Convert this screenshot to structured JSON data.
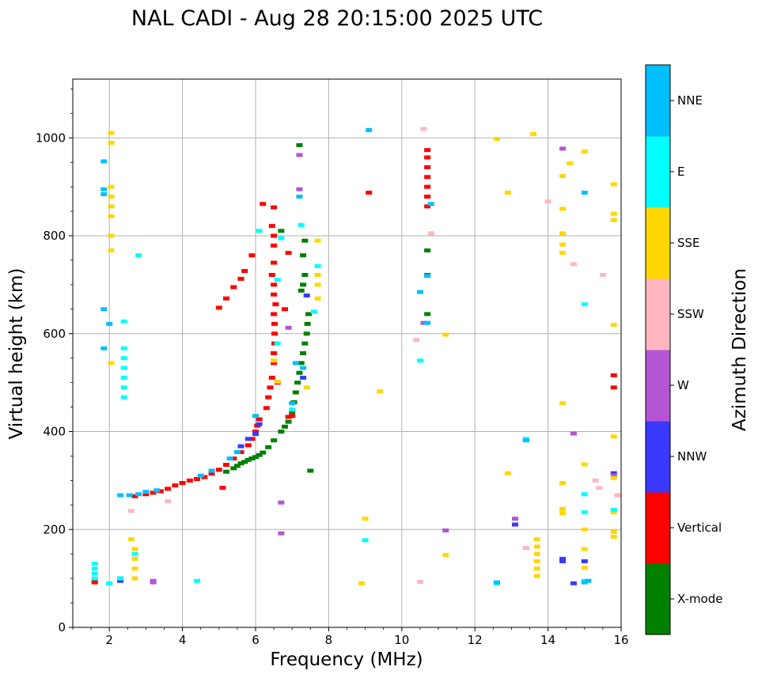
{
  "chart_data": {
    "type": "scatter",
    "title": "NAL CADI - Aug 28 20:15:00 2025 UTC",
    "xlabel": "Frequency (MHz)",
    "ylabel": "Virtual height (km)",
    "xlim": [
      1,
      16
    ],
    "ylim": [
      0,
      1120
    ],
    "xticks": [
      2,
      4,
      6,
      8,
      10,
      12,
      14,
      16
    ],
    "yticks": [
      0,
      200,
      400,
      600,
      800,
      1000
    ],
    "grid": true,
    "colorbar": {
      "label": "Azimuth Direction",
      "categories": [
        {
          "name": "X-mode",
          "color": "#008000"
        },
        {
          "name": "Vertical",
          "color": "#ff0000"
        },
        {
          "name": "NNW",
          "color": "#3a3aff"
        },
        {
          "name": "W",
          "color": "#b455d6"
        },
        {
          "name": "SSW",
          "color": "#ffb6c1"
        },
        {
          "name": "SSE",
          "color": "#ffd700"
        },
        {
          "name": "E",
          "color": "#00ffff"
        },
        {
          "name": "NNE",
          "color": "#00bfff"
        }
      ]
    },
    "series": [
      {
        "name": "X-mode",
        "points": [
          [
            5.2,
            318
          ],
          [
            5.4,
            325
          ],
          [
            5.5,
            330
          ],
          [
            5.6,
            335
          ],
          [
            5.7,
            338
          ],
          [
            5.8,
            342
          ],
          [
            5.9,
            345
          ],
          [
            6.0,
            348
          ],
          [
            6.1,
            352
          ],
          [
            6.2,
            357
          ],
          [
            6.35,
            368
          ],
          [
            6.5,
            382
          ],
          [
            6.7,
            400
          ],
          [
            6.8,
            410
          ],
          [
            6.9,
            420
          ],
          [
            7.0,
            440
          ],
          [
            7.05,
            460
          ],
          [
            7.1,
            480
          ],
          [
            7.15,
            500
          ],
          [
            7.2,
            520
          ],
          [
            7.25,
            540
          ],
          [
            7.3,
            560
          ],
          [
            7.35,
            580
          ],
          [
            7.4,
            600
          ],
          [
            7.42,
            620
          ],
          [
            7.45,
            640
          ],
          [
            7.25,
            688
          ],
          [
            7.3,
            700
          ],
          [
            7.35,
            720
          ],
          [
            7.3,
            760
          ],
          [
            7.35,
            790
          ],
          [
            6.7,
            810
          ],
          [
            7.2,
            985
          ],
          [
            7.5,
            320
          ],
          [
            10.7,
            770
          ],
          [
            10.7,
            720
          ],
          [
            10.7,
            640
          ],
          [
            1.6,
            95
          ]
        ]
      },
      {
        "name": "Vertical",
        "points": [
          [
            2.7,
            268
          ],
          [
            3.0,
            272
          ],
          [
            3.2,
            275
          ],
          [
            3.4,
            278
          ],
          [
            3.6,
            283
          ],
          [
            3.8,
            290
          ],
          [
            4.0,
            295
          ],
          [
            4.2,
            300
          ],
          [
            4.4,
            303
          ],
          [
            4.6,
            307
          ],
          [
            4.8,
            314
          ],
          [
            5.0,
            322
          ],
          [
            5.2,
            332
          ],
          [
            5.4,
            345
          ],
          [
            5.6,
            358
          ],
          [
            5.8,
            372
          ],
          [
            5.9,
            385
          ],
          [
            6.0,
            400
          ],
          [
            6.05,
            412
          ],
          [
            6.1,
            425
          ],
          [
            6.3,
            448
          ],
          [
            6.35,
            470
          ],
          [
            6.4,
            490
          ],
          [
            6.45,
            510
          ],
          [
            6.5,
            540
          ],
          [
            6.5,
            560
          ],
          [
            6.52,
            580
          ],
          [
            6.52,
            600
          ],
          [
            6.52,
            620
          ],
          [
            6.5,
            640
          ],
          [
            6.55,
            660
          ],
          [
            6.5,
            680
          ],
          [
            6.5,
            700
          ],
          [
            6.45,
            720
          ],
          [
            6.5,
            745
          ],
          [
            6.5,
            780
          ],
          [
            6.5,
            800
          ],
          [
            6.45,
            820
          ],
          [
            6.5,
            858
          ],
          [
            6.2,
            865
          ],
          [
            5.9,
            760
          ],
          [
            5.7,
            728
          ],
          [
            5.6,
            712
          ],
          [
            5.4,
            695
          ],
          [
            5.2,
            672
          ],
          [
            5.0,
            653
          ],
          [
            6.9,
            765
          ],
          [
            6.8,
            650
          ],
          [
            6.6,
            500
          ],
          [
            6.9,
            430
          ],
          [
            7.0,
            432
          ],
          [
            5.1,
            285
          ],
          [
            1.6,
            92
          ],
          [
            9.1,
            888
          ],
          [
            10.7,
            860
          ],
          [
            10.7,
            880
          ],
          [
            10.7,
            900
          ],
          [
            10.7,
            920
          ],
          [
            10.7,
            940
          ],
          [
            10.7,
            960
          ],
          [
            10.7,
            975
          ],
          [
            15.8,
            515
          ],
          [
            15.8,
            490
          ]
        ]
      },
      {
        "name": "NNW",
        "points": [
          [
            2.3,
            95
          ],
          [
            2.3,
            100
          ],
          [
            5.6,
            370
          ],
          [
            5.8,
            385
          ],
          [
            6.0,
            395
          ],
          [
            6.1,
            415
          ],
          [
            7.3,
            510
          ],
          [
            7.4,
            678
          ],
          [
            13.4,
            383
          ],
          [
            13.1,
            210
          ],
          [
            14.4,
            135
          ],
          [
            14.4,
            140
          ],
          [
            14.7,
            90
          ],
          [
            15.0,
            135
          ],
          [
            15.8,
            315
          ]
        ]
      },
      {
        "name": "W",
        "points": [
          [
            3.2,
            92
          ],
          [
            3.2,
            95
          ],
          [
            6.7,
            255
          ],
          [
            6.7,
            192
          ],
          [
            7.2,
            895
          ],
          [
            7.2,
            965
          ],
          [
            6.9,
            612
          ],
          [
            10.6,
            622
          ],
          [
            11.2,
            198
          ],
          [
            13.1,
            222
          ],
          [
            14.4,
            978
          ],
          [
            14.7,
            396
          ],
          [
            15.8,
            240
          ],
          [
            15.8,
            310
          ]
        ]
      },
      {
        "name": "SSW",
        "points": [
          [
            10.4,
            587
          ],
          [
            10.6,
            1018
          ],
          [
            10.8,
            805
          ],
          [
            10.5,
            93
          ],
          [
            13.4,
            162
          ],
          [
            14.0,
            870
          ],
          [
            14.7,
            742
          ],
          [
            15.3,
            300
          ],
          [
            15.5,
            720
          ],
          [
            15.9,
            270
          ],
          [
            15.4,
            285
          ],
          [
            3.6,
            258
          ],
          [
            2.6,
            238
          ]
        ]
      },
      {
        "name": "SSE",
        "points": [
          [
            2.05,
            1010
          ],
          [
            2.05,
            990
          ],
          [
            2.05,
            900
          ],
          [
            2.05,
            880
          ],
          [
            2.05,
            860
          ],
          [
            2.05,
            840
          ],
          [
            2.05,
            800
          ],
          [
            2.05,
            770
          ],
          [
            2.05,
            540
          ],
          [
            2.7,
            100
          ],
          [
            2.7,
            120
          ],
          [
            2.7,
            140
          ],
          [
            2.7,
            160
          ],
          [
            2.6,
            180
          ],
          [
            6.5,
            545
          ],
          [
            6.6,
            502
          ],
          [
            7.4,
            490
          ],
          [
            7.7,
            790
          ],
          [
            7.7,
            720
          ],
          [
            7.7,
            700
          ],
          [
            7.7,
            672
          ],
          [
            9.0,
            222
          ],
          [
            8.9,
            90
          ],
          [
            9.4,
            482
          ],
          [
            11.2,
            598
          ],
          [
            11.2,
            148
          ],
          [
            12.6,
            998
          ],
          [
            12.9,
            888
          ],
          [
            12.9,
            315
          ],
          [
            13.6,
            1008
          ],
          [
            13.7,
            180
          ],
          [
            13.7,
            165
          ],
          [
            13.7,
            150
          ],
          [
            13.7,
            135
          ],
          [
            13.7,
            120
          ],
          [
            13.7,
            105
          ],
          [
            14.4,
            922
          ],
          [
            14.4,
            855
          ],
          [
            14.4,
            805
          ],
          [
            14.4,
            782
          ],
          [
            14.4,
            765
          ],
          [
            14.4,
            458
          ],
          [
            14.4,
            295
          ],
          [
            14.4,
            242
          ],
          [
            14.4,
            233
          ],
          [
            14.6,
            948
          ],
          [
            15.0,
            972
          ],
          [
            15.0,
            333
          ],
          [
            15.0,
            200
          ],
          [
            15.0,
            160
          ],
          [
            15.0,
            122
          ],
          [
            15.8,
            905
          ],
          [
            15.8,
            845
          ],
          [
            15.8,
            832
          ],
          [
            15.8,
            618
          ],
          [
            15.8,
            390
          ],
          [
            15.8,
            305
          ],
          [
            15.8,
            235
          ],
          [
            15.8,
            195
          ],
          [
            15.8,
            185
          ]
        ]
      },
      {
        "name": "E",
        "points": [
          [
            1.6,
            100
          ],
          [
            1.6,
            110
          ],
          [
            1.6,
            120
          ],
          [
            1.6,
            130
          ],
          [
            2.0,
            90
          ],
          [
            2.4,
            470
          ],
          [
            2.4,
            490
          ],
          [
            2.4,
            510
          ],
          [
            2.4,
            530
          ],
          [
            2.4,
            550
          ],
          [
            2.4,
            570
          ],
          [
            2.4,
            625
          ],
          [
            2.8,
            760
          ],
          [
            2.3,
            100
          ],
          [
            2.7,
            150
          ],
          [
            4.4,
            95
          ],
          [
            6.1,
            810
          ],
          [
            6.7,
            795
          ],
          [
            6.6,
            710
          ],
          [
            6.6,
            580
          ],
          [
            7.0,
            445
          ],
          [
            7.25,
            822
          ],
          [
            7.7,
            738
          ],
          [
            7.6,
            645
          ],
          [
            9.0,
            178
          ],
          [
            10.5,
            545
          ],
          [
            13.4,
            385
          ],
          [
            15.0,
            660
          ],
          [
            15.0,
            272
          ],
          [
            15.0,
            235
          ],
          [
            15.0,
            95
          ],
          [
            12.6,
            90
          ],
          [
            15.8,
            240
          ]
        ]
      },
      {
        "name": "NNE",
        "points": [
          [
            1.85,
            952
          ],
          [
            1.85,
            895
          ],
          [
            1.85,
            885
          ],
          [
            1.85,
            650
          ],
          [
            2.0,
            620
          ],
          [
            1.85,
            570
          ],
          [
            2.3,
            270
          ],
          [
            2.55,
            270
          ],
          [
            2.8,
            272
          ],
          [
            3.0,
            277
          ],
          [
            3.3,
            280
          ],
          [
            4.5,
            310
          ],
          [
            4.8,
            320
          ],
          [
            5.3,
            345
          ],
          [
            5.5,
            358
          ],
          [
            6.0,
            432
          ],
          [
            7.1,
            540
          ],
          [
            7.3,
            530
          ],
          [
            7.2,
            880
          ],
          [
            7.0,
            458
          ],
          [
            9.1,
            1016
          ],
          [
            10.5,
            685
          ],
          [
            10.7,
            718
          ],
          [
            10.7,
            622
          ],
          [
            10.8,
            865
          ],
          [
            12.6,
            92
          ],
          [
            13.4,
            382
          ],
          [
            15.0,
            888
          ],
          [
            15.0,
            92
          ],
          [
            15.1,
            95
          ]
        ]
      }
    ]
  }
}
